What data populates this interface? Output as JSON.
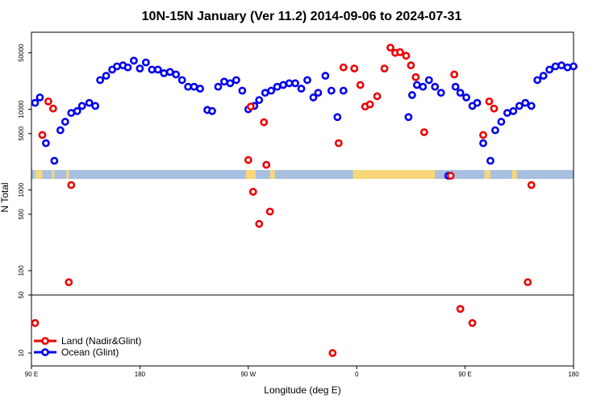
{
  "chart_data": {
    "type": "scatter",
    "title": "10N-15N January (Ver 11.2)   2014-09-06 to 2024-07-31",
    "xlabel": "Longitude (deg E)",
    "ylabel": "N Total",
    "x_ticks": [
      {
        "value": 90,
        "label": "90 E"
      },
      {
        "value": 180,
        "label": "180"
      },
      {
        "value": 270,
        "label": "90 W"
      },
      {
        "value": 360,
        "label": "0"
      },
      {
        "value": 450,
        "label": "90 E"
      },
      {
        "value": 540,
        "label": "180"
      }
    ],
    "xlim": [
      90,
      540
    ],
    "y_ticks_lower": [
      {
        "value": 10,
        "label": "10"
      },
      {
        "value": 50,
        "label": "50"
      }
    ],
    "y_ticks_upper": [
      {
        "value": 100,
        "label": "100"
      },
      {
        "value": 500,
        "label": "500"
      },
      {
        "value": 1000,
        "label": "1000"
      },
      {
        "value": 5000,
        "label": "5000"
      },
      {
        "value": 10000,
        "label": "10000"
      },
      {
        "value": 50000,
        "label": "50000"
      }
    ],
    "ylim_lower": [
      7,
      50
    ],
    "ylim_upper": [
      50,
      90000
    ],
    "colors": {
      "land": "#ee0000",
      "ocean": "#0000ee",
      "map_ocean": "#a8bfe0",
      "map_land": "#f7d77a"
    },
    "series": [
      {
        "name": "Land (Nadir&Glint)",
        "x": [
          93,
          99,
          104,
          108,
          121,
          123,
          270,
          272,
          274,
          279,
          283,
          285,
          288,
          340,
          345,
          349,
          358,
          363,
          367,
          371,
          377,
          383,
          388,
          392,
          396,
          401,
          405,
          409,
          416,
          438,
          441,
          446,
          456,
          465,
          470,
          474,
          502,
          505
        ],
        "y": [
          23,
          4800,
          12500,
          10200,
          72,
          1150,
          2350,
          10800,
          950,
          380,
          6900,
          2050,
          540,
          10,
          3800,
          33000,
          32000,
          20000,
          10800,
          11500,
          14500,
          32000,
          58000,
          50000,
          51000,
          46000,
          35000,
          25000,
          5200,
          1500,
          27000,
          34,
          23,
          4800,
          12500,
          10200,
          72,
          1150
        ],
        "note": "x values beyond 540 are not drawn"
      },
      {
        "name": "Ocean (Glint)",
        "x": [
          93,
          97,
          102,
          109,
          114,
          118,
          123,
          128,
          132,
          138,
          143,
          147,
          152,
          157,
          161,
          166,
          170,
          175,
          180,
          185,
          190,
          195,
          200,
          205,
          210,
          215,
          220,
          225,
          230,
          236,
          240,
          245,
          250,
          255,
          260,
          265,
          270,
          275,
          279,
          284,
          289,
          294,
          299,
          304,
          309,
          314,
          319,
          324,
          328,
          334,
          339,
          344,
          349,
          403,
          406,
          410,
          415,
          420,
          425,
          430,
          436,
          442,
          446,
          451,
          456,
          460,
          465,
          471,
          475,
          480,
          485,
          490,
          495,
          500,
          505,
          510,
          515,
          520,
          525,
          530,
          535,
          540
        ],
        "y": [
          12000,
          14000,
          3800,
          2300,
          5500,
          7000,
          9000,
          9500,
          11000,
          12000,
          11000,
          23000,
          26000,
          31000,
          34000,
          35000,
          33000,
          40000,
          32000,
          38000,
          31000,
          31000,
          28000,
          29000,
          27000,
          23000,
          19000,
          19000,
          18000,
          9800,
          9500,
          19000,
          22000,
          21000,
          23000,
          17000,
          10000,
          11000,
          13000,
          16000,
          17000,
          19000,
          20000,
          21000,
          21000,
          18000,
          23000,
          14000,
          16000,
          26000,
          17000,
          8000,
          17000,
          8000,
          15000,
          20000,
          19000,
          23000,
          19000,
          16000,
          1500,
          19000,
          16000,
          14000,
          11000,
          12000,
          3800,
          2300,
          5500,
          7000,
          9000,
          9500,
          11000,
          12000,
          11000,
          23000,
          26000,
          31000,
          34000,
          35000,
          33000,
          34000
        ],
        "note": "x values beyond 540 are not drawn"
      }
    ],
    "legend": {
      "placement": "bottom-left",
      "entries": [
        "Land (Nadir&Glint)",
        "Ocean (Glint)"
      ]
    }
  }
}
